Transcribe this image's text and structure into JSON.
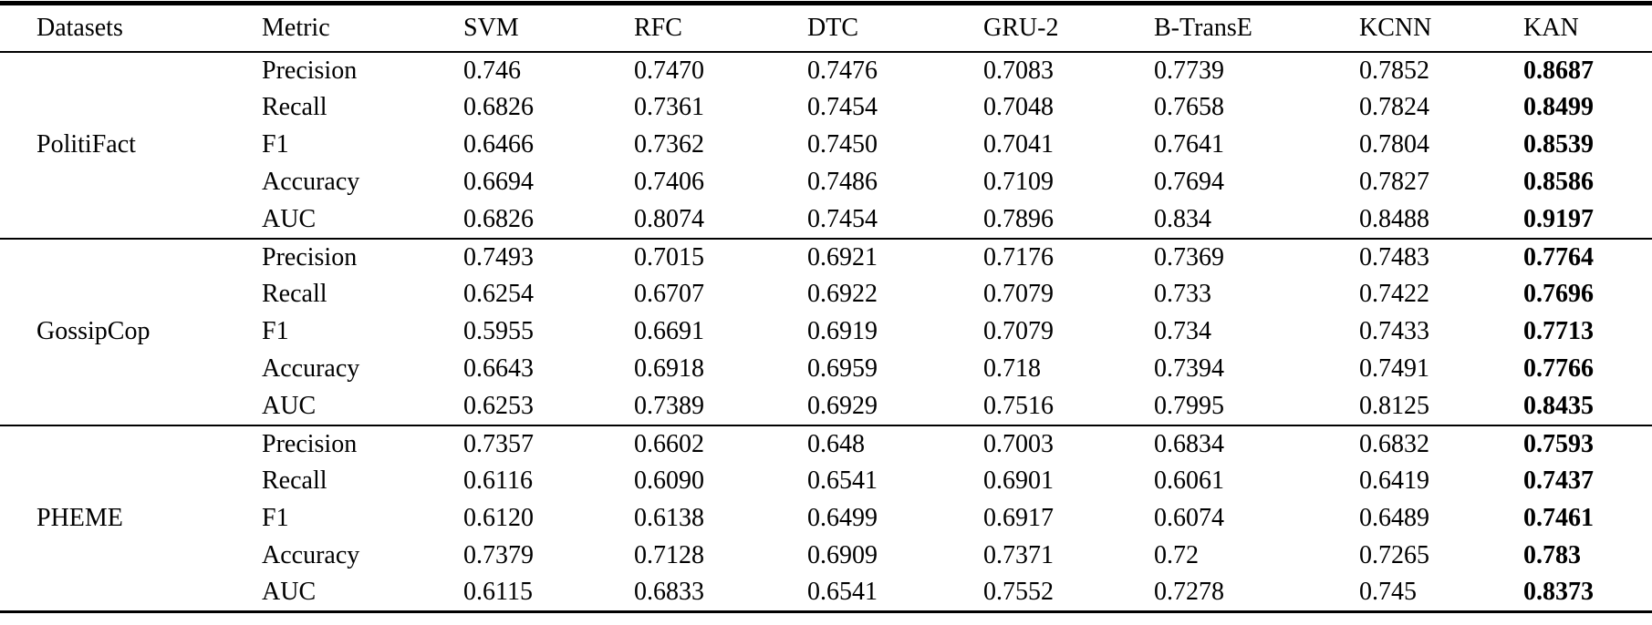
{
  "table": {
    "columns": [
      "Datasets",
      "Metric",
      "SVM",
      "RFC",
      "DTC",
      "GRU-2",
      "B-TransE",
      "KCNN",
      "KAN"
    ],
    "best_method_column": "KAN",
    "text_color": "#000000",
    "background_color": "#ffffff",
    "groups": [
      {
        "dataset": "PolitiFact",
        "rows": [
          {
            "metric": "Precision",
            "values": [
              "0.746",
              "0.7470",
              "0.7476",
              "0.7083",
              "0.7739",
              "0.7852",
              "0.8687"
            ]
          },
          {
            "metric": "Recall",
            "values": [
              "0.6826",
              "0.7361",
              "0.7454",
              "0.7048",
              "0.7658",
              "0.7824",
              "0.8499"
            ]
          },
          {
            "metric": "F1",
            "values": [
              "0.6466",
              "0.7362",
              "0.7450",
              "0.7041",
              "0.7641",
              "0.7804",
              "0.8539"
            ]
          },
          {
            "metric": "Accuracy",
            "values": [
              "0.6694",
              "0.7406",
              "0.7486",
              "0.7109",
              "0.7694",
              "0.7827",
              "0.8586"
            ]
          },
          {
            "metric": "AUC",
            "values": [
              "0.6826",
              "0.8074",
              "0.7454",
              "0.7896",
              "0.834",
              "0.8488",
              "0.9197"
            ]
          }
        ]
      },
      {
        "dataset": "GossipCop",
        "rows": [
          {
            "metric": "Precision",
            "values": [
              "0.7493",
              "0.7015",
              "0.6921",
              "0.7176",
              "0.7369",
              "0.7483",
              "0.7764"
            ]
          },
          {
            "metric": "Recall",
            "values": [
              "0.6254",
              "0.6707",
              "0.6922",
              "0.7079",
              "0.733",
              "0.7422",
              "0.7696"
            ]
          },
          {
            "metric": "F1",
            "values": [
              "0.5955",
              "0.6691",
              "0.6919",
              "0.7079",
              "0.734",
              "0.7433",
              "0.7713"
            ]
          },
          {
            "metric": "Accuracy",
            "values": [
              "0.6643",
              "0.6918",
              "0.6959",
              "0.718",
              "0.7394",
              "0.7491",
              "0.7766"
            ]
          },
          {
            "metric": "AUC",
            "values": [
              "0.6253",
              "0.7389",
              "0.6929",
              "0.7516",
              "0.7995",
              "0.8125",
              "0.8435"
            ]
          }
        ]
      },
      {
        "dataset": "PHEME",
        "rows": [
          {
            "metric": "Precision",
            "values": [
              "0.7357",
              "0.6602",
              "0.648",
              "0.7003",
              "0.6834",
              "0.6832",
              "0.7593"
            ]
          },
          {
            "metric": "Recall",
            "values": [
              "0.6116",
              "0.6090",
              "0.6541",
              "0.6901",
              "0.6061",
              "0.6419",
              "0.7437"
            ]
          },
          {
            "metric": "F1",
            "values": [
              "0.6120",
              "0.6138",
              "0.6499",
              "0.6917",
              "0.6074",
              "0.6489",
              "0.7461"
            ]
          },
          {
            "metric": "Accuracy",
            "values": [
              "0.7379",
              "0.7128",
              "0.6909",
              "0.7371",
              "0.72",
              "0.7265",
              "0.783"
            ]
          },
          {
            "metric": "AUC",
            "values": [
              "0.6115",
              "0.6833",
              "0.6541",
              "0.7552",
              "0.7278",
              "0.745",
              "0.8373"
            ]
          }
        ]
      }
    ]
  }
}
